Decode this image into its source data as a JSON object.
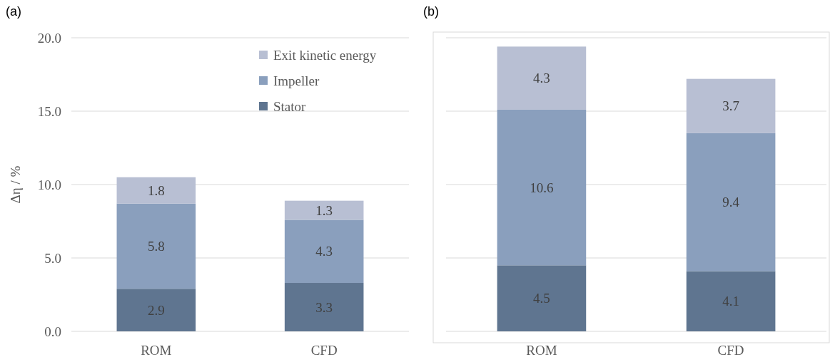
{
  "chart_data": [
    {
      "type": "bar",
      "title": "(a)",
      "ylabel": "Δη / %",
      "categories": [
        "ROM",
        "CFD"
      ],
      "stacked": true,
      "data_labels": true,
      "legend": "top right",
      "grid": "y",
      "ylim": [
        0,
        20
      ],
      "yticks": [
        {
          "value": 0,
          "label": "0.0"
        },
        {
          "value": 5,
          "label": "5.0"
        },
        {
          "value": 10,
          "label": "10.0"
        },
        {
          "value": 15,
          "label": "15.0"
        },
        {
          "value": 20,
          "label": "20.0"
        }
      ],
      "series": [
        {
          "name": "Stator",
          "color": "#5f7590",
          "values": [
            2.9,
            3.3
          ]
        },
        {
          "name": "Impeller",
          "color": "#8a9fbd",
          "values": [
            5.8,
            4.3
          ]
        },
        {
          "name": "Exit kinetic energy",
          "color": "#b8bfd3",
          "values": [
            1.8,
            1.3
          ]
        }
      ]
    },
    {
      "type": "bar",
      "title": "(b)",
      "categories": [
        "ROM",
        "CFD"
      ],
      "stacked": true,
      "data_labels": true,
      "grid": "y",
      "tick_labels": "x",
      "ylim": [
        0,
        20
      ],
      "yticks": [
        {
          "value": 0,
          "label": null
        },
        {
          "value": 5,
          "label": null
        },
        {
          "value": 10,
          "label": null
        },
        {
          "value": 15,
          "label": null
        },
        {
          "value": 20,
          "label": null
        }
      ],
      "series": [
        {
          "color": "#5f7590",
          "values": [
            4.5,
            4.1
          ]
        },
        {
          "color": "#8a9fbd",
          "values": [
            10.6,
            9.4
          ]
        },
        {
          "color": "#b8bfd3",
          "values": [
            4.3,
            3.7
          ]
        }
      ]
    }
  ]
}
